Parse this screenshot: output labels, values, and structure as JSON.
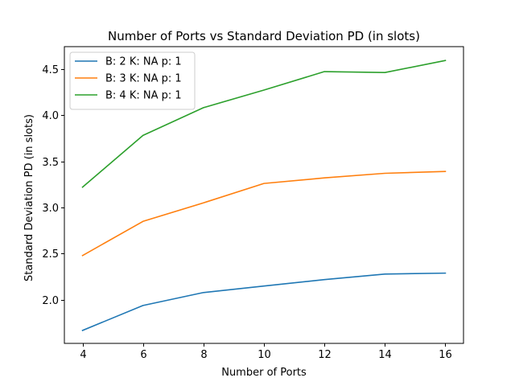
{
  "chart_data": {
    "type": "line",
    "title": "Number of Ports vs Standard Deviation PD (in slots)",
    "xlabel": "Number of Ports",
    "ylabel": "Standard Deviation PD (in slots)",
    "x": [
      4,
      6,
      8,
      10,
      12,
      14,
      16
    ],
    "xticks": [
      "4",
      "6",
      "8",
      "10",
      "12",
      "14",
      "16"
    ],
    "yticks": [
      "2.0",
      "2.5",
      "3.0",
      "3.5",
      "4.0",
      "4.5"
    ],
    "xlim": [
      3.4,
      16.6
    ],
    "ylim": [
      1.53,
      4.74
    ],
    "grid": false,
    "legend_position": "top-left",
    "series": [
      {
        "name": "B: 2 K: NA p: 1",
        "color": "#1f77b4",
        "values": [
          1.67,
          1.94,
          2.08,
          2.15,
          2.22,
          2.28,
          2.29
        ]
      },
      {
        "name": "B: 3 K: NA p: 1",
        "color": "#ff7f0e",
        "values": [
          2.48,
          2.85,
          3.05,
          3.26,
          3.32,
          3.37,
          3.39
        ]
      },
      {
        "name": "B: 4 K: NA p: 1",
        "color": "#2ca02c",
        "values": [
          3.22,
          3.78,
          4.08,
          4.27,
          4.47,
          4.46,
          4.59
        ]
      }
    ]
  }
}
